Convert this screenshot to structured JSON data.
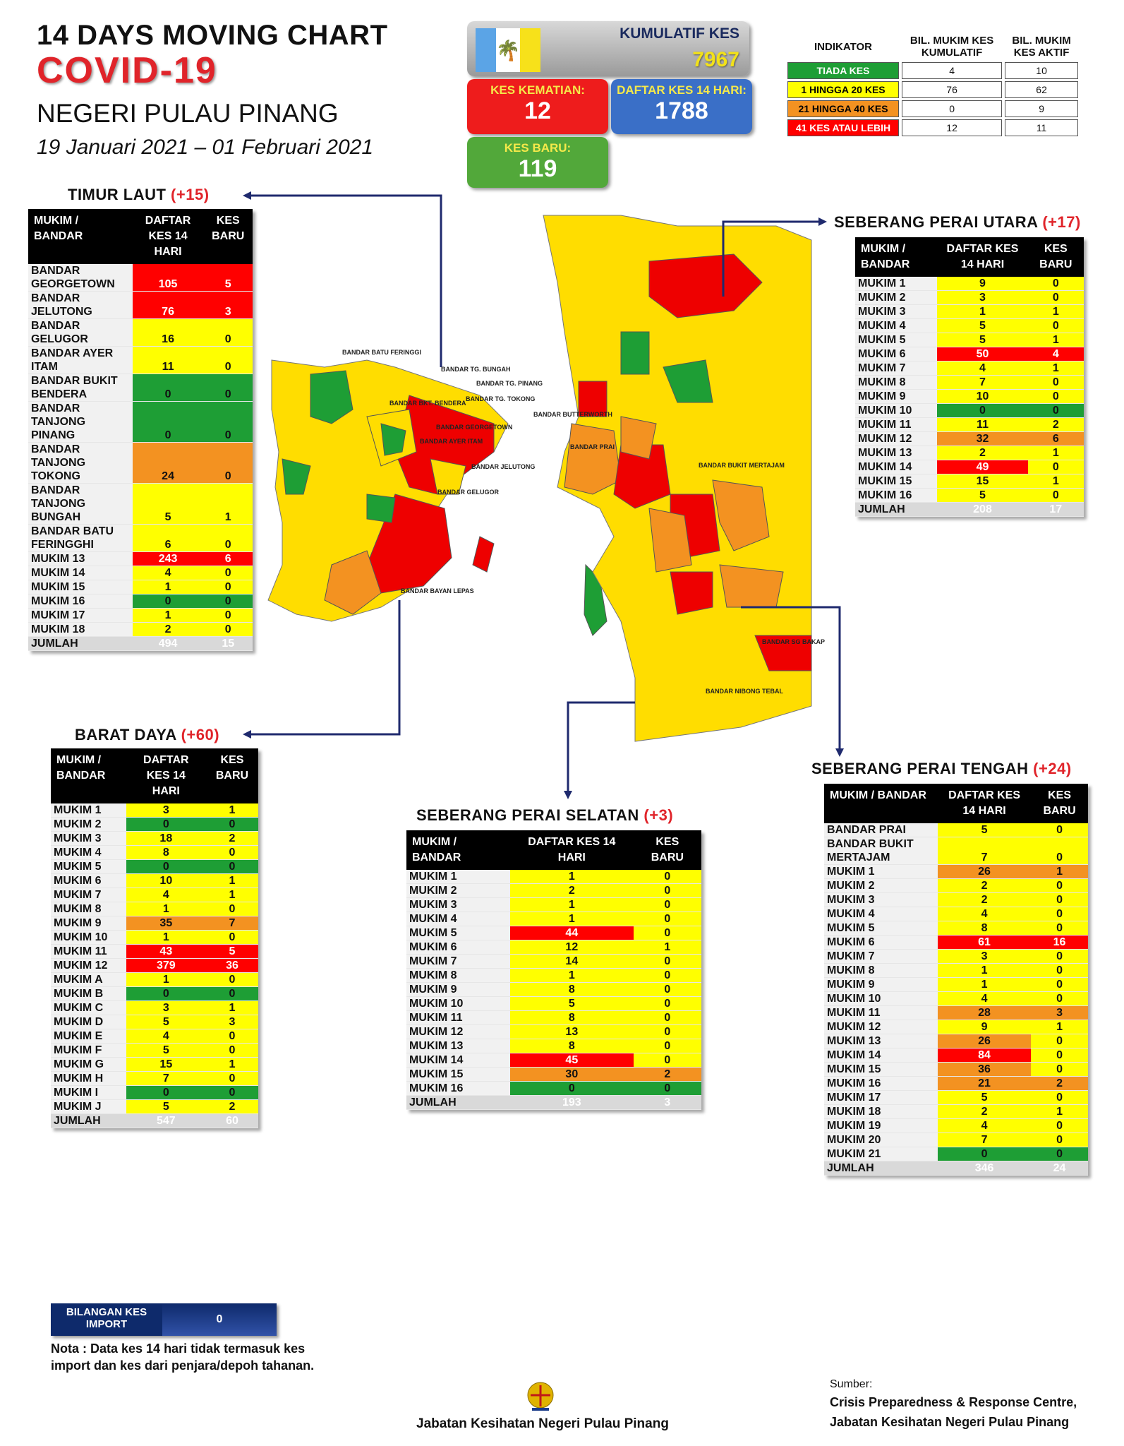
{
  "title": {
    "line1": "14  DAYS MOVING CHART",
    "line2": "COVID-19",
    "line3": "NEGERI PULAU PINANG",
    "dates": "19 Januari 2021 – 01 Februari 2021"
  },
  "summary": {
    "kumulatif_label": "KUMULATIF KES",
    "kumulatif_value": "7967",
    "kematian_label": "KES KEMATIAN:",
    "kematian_value": "12",
    "daftar_label": "DAFTAR KES 14 HARI:",
    "daftar_value": "1788",
    "baru_label": "KES BARU:",
    "baru_value": "119"
  },
  "indicator": {
    "headers": [
      "INDIKATOR",
      "BIL. MUKIM KES KUMULATIF",
      "BIL. MUKIM KES AKTIF"
    ],
    "rows": [
      {
        "label": "TIADA KES",
        "kumulatif": "4",
        "aktif": "10",
        "color": "#1e9e35"
      },
      {
        "label": "1 HINGGA 20 KES",
        "kumulatif": "76",
        "aktif": "62",
        "color": "#ffff00"
      },
      {
        "label": "21 HINGGA 40 KES",
        "kumulatif": "0",
        "aktif": "9",
        "color": "#f39221"
      },
      {
        "label": "41 KES ATAU LEBIH",
        "kumulatif": "12",
        "aktif": "11",
        "color": "#ff0000"
      }
    ]
  },
  "tables": {
    "timur_laut": {
      "name": "TIMUR LAUT",
      "plus": "(+15)",
      "headers": [
        "MUKIM / BANDAR",
        "DAFTAR KES 14 HARI",
        "KES BARU"
      ],
      "rows": [
        [
          "BANDAR GEORGETOWN",
          "105",
          "5",
          "R",
          "R"
        ],
        [
          "BANDAR JELUTONG",
          "76",
          "3",
          "R",
          "R"
        ],
        [
          "BANDAR GELUGOR",
          "16",
          "0",
          "Y",
          "Y"
        ],
        [
          "BANDAR AYER ITAM",
          "11",
          "0",
          "Y",
          "Y"
        ],
        [
          "BANDAR BUKIT BENDERA",
          "0",
          "0",
          "G",
          "G"
        ],
        [
          "BANDAR TANJONG PINANG",
          "0",
          "0",
          "G",
          "G"
        ],
        [
          "BANDAR TANJONG TOKONG",
          "24",
          "0",
          "O",
          "O"
        ],
        [
          "BANDAR TANJONG BUNGAH",
          "5",
          "1",
          "Y",
          "Y"
        ],
        [
          "BANDAR BATU FERINGGHI",
          "6",
          "0",
          "Y",
          "Y"
        ],
        [
          "MUKIM 13",
          "243",
          "6",
          "R",
          "R"
        ],
        [
          "MUKIM 14",
          "4",
          "0",
          "Y",
          "Y"
        ],
        [
          "MUKIM 15",
          "1",
          "0",
          "Y",
          "Y"
        ],
        [
          "MUKIM 16",
          "0",
          "0",
          "G",
          "G"
        ],
        [
          "MUKIM 17",
          "1",
          "0",
          "Y",
          "Y"
        ],
        [
          "MUKIM 18",
          "2",
          "0",
          "Y",
          "Y"
        ]
      ],
      "total": [
        "JUMLAH",
        "494",
        "15"
      ]
    },
    "barat_daya": {
      "name": "BARAT DAYA",
      "plus": "(+60)",
      "headers": [
        "MUKIM / BANDAR",
        "DAFTAR KES 14 HARI",
        "KES BARU"
      ],
      "rows": [
        [
          "MUKIM 1",
          "3",
          "1",
          "Y",
          "Y"
        ],
        [
          "MUKIM 2",
          "0",
          "0",
          "G",
          "G"
        ],
        [
          "MUKIM 3",
          "18",
          "2",
          "Y",
          "Y"
        ],
        [
          "MUKIM 4",
          "8",
          "0",
          "Y",
          "Y"
        ],
        [
          "MUKIM 5",
          "0",
          "0",
          "G",
          "G"
        ],
        [
          "MUKIM 6",
          "10",
          "1",
          "Y",
          "Y"
        ],
        [
          "MUKIM 7",
          "4",
          "1",
          "Y",
          "Y"
        ],
        [
          "MUKIM 8",
          "1",
          "0",
          "Y",
          "Y"
        ],
        [
          "MUKIM 9",
          "35",
          "7",
          "O",
          "O"
        ],
        [
          "MUKIM 10",
          "1",
          "0",
          "Y",
          "Y"
        ],
        [
          "MUKIM 11",
          "43",
          "5",
          "R",
          "R"
        ],
        [
          "MUKIM 12",
          "379",
          "36",
          "R",
          "R"
        ],
        [
          "MUKIM A",
          "1",
          "0",
          "Y",
          "Y"
        ],
        [
          "MUKIM B",
          "0",
          "0",
          "G",
          "G"
        ],
        [
          "MUKIM C",
          "3",
          "1",
          "Y",
          "Y"
        ],
        [
          "MUKIM D",
          "5",
          "3",
          "Y",
          "Y"
        ],
        [
          "MUKIM E",
          "4",
          "0",
          "Y",
          "Y"
        ],
        [
          "MUKIM F",
          "5",
          "0",
          "Y",
          "Y"
        ],
        [
          "MUKIM G",
          "15",
          "1",
          "Y",
          "Y"
        ],
        [
          "MUKIM H",
          "7",
          "0",
          "Y",
          "Y"
        ],
        [
          "MUKIM I",
          "0",
          "0",
          "G",
          "G"
        ],
        [
          "MUKIM J",
          "5",
          "2",
          "Y",
          "Y"
        ]
      ],
      "total": [
        "JUMLAH",
        "547",
        "60"
      ]
    },
    "spu": {
      "name": "SEBERANG PERAI UTARA",
      "plus": "(+17)",
      "headers": [
        "MUKIM / BANDAR",
        "DAFTAR KES 14 HARI",
        "KES BARU"
      ],
      "rows": [
        [
          "MUKIM 1",
          "9",
          "0",
          "Y",
          "Y"
        ],
        [
          "MUKIM 2",
          "3",
          "0",
          "Y",
          "Y"
        ],
        [
          "MUKIM 3",
          "1",
          "1",
          "Y",
          "Y"
        ],
        [
          "MUKIM 4",
          "5",
          "0",
          "Y",
          "Y"
        ],
        [
          "MUKIM 5",
          "5",
          "1",
          "Y",
          "Y"
        ],
        [
          "MUKIM 6",
          "50",
          "4",
          "R",
          "R"
        ],
        [
          "MUKIM 7",
          "4",
          "1",
          "Y",
          "Y"
        ],
        [
          "MUKIM 8",
          "7",
          "0",
          "Y",
          "Y"
        ],
        [
          "MUKIM 9",
          "10",
          "0",
          "Y",
          "Y"
        ],
        [
          "MUKIM 10",
          "0",
          "0",
          "G",
          "G"
        ],
        [
          "MUKIM 11",
          "11",
          "2",
          "Y",
          "Y"
        ],
        [
          "MUKIM 12",
          "32",
          "6",
          "O",
          "O"
        ],
        [
          "MUKIM 13",
          "2",
          "1",
          "Y",
          "Y"
        ],
        [
          "MUKIM 14",
          "49",
          "0",
          "R",
          "Y"
        ],
        [
          "MUKIM 15",
          "15",
          "1",
          "Y",
          "Y"
        ],
        [
          "MUKIM 16",
          "5",
          "0",
          "Y",
          "Y"
        ]
      ],
      "total": [
        "JUMLAH",
        "208",
        "17"
      ]
    },
    "sps": {
      "name": "SEBERANG PERAI SELATAN",
      "plus": "(+3)",
      "headers": [
        "MUKIM / BANDAR",
        "DAFTAR KES 14 HARI",
        "KES BARU"
      ],
      "rows": [
        [
          "MUKIM 1",
          "1",
          "0",
          "Y",
          "Y"
        ],
        [
          "MUKIM 2",
          "2",
          "0",
          "Y",
          "Y"
        ],
        [
          "MUKIM 3",
          "1",
          "0",
          "Y",
          "Y"
        ],
        [
          "MUKIM 4",
          "1",
          "0",
          "Y",
          "Y"
        ],
        [
          "MUKIM 5",
          "44",
          "0",
          "R",
          "Y"
        ],
        [
          "MUKIM 6",
          "12",
          "1",
          "Y",
          "Y"
        ],
        [
          "MUKIM 7",
          "14",
          "0",
          "Y",
          "Y"
        ],
        [
          "MUKIM 8",
          "1",
          "0",
          "Y",
          "Y"
        ],
        [
          "MUKIM 9",
          "8",
          "0",
          "Y",
          "Y"
        ],
        [
          "MUKIM 10",
          "5",
          "0",
          "Y",
          "Y"
        ],
        [
          "MUKIM 11",
          "8",
          "0",
          "Y",
          "Y"
        ],
        [
          "MUKIM 12",
          "13",
          "0",
          "Y",
          "Y"
        ],
        [
          "MUKIM 13",
          "8",
          "0",
          "Y",
          "Y"
        ],
        [
          "MUKIM 14",
          "45",
          "0",
          "R",
          "Y"
        ],
        [
          "MUKIM 15",
          "30",
          "2",
          "O",
          "O"
        ],
        [
          "MUKIM 16",
          "0",
          "0",
          "G",
          "G"
        ]
      ],
      "total": [
        "JUMLAH",
        "193",
        "3"
      ]
    },
    "spt": {
      "name": "SEBERANG PERAI TENGAH",
      "plus": "(+24)",
      "headers": [
        "MUKIM / BANDAR",
        "DAFTAR KES 14 HARI",
        "KES BARU"
      ],
      "rows": [
        [
          "BANDAR PRAI",
          "5",
          "0",
          "Y",
          "Y"
        ],
        [
          "BANDAR BUKIT MERTAJAM",
          "7",
          "0",
          "Y",
          "Y"
        ],
        [
          "MUKIM 1",
          "26",
          "1",
          "O",
          "O"
        ],
        [
          "MUKIM 2",
          "2",
          "0",
          "Y",
          "Y"
        ],
        [
          "MUKIM 3",
          "2",
          "0",
          "Y",
          "Y"
        ],
        [
          "MUKIM 4",
          "4",
          "0",
          "Y",
          "Y"
        ],
        [
          "MUKIM 5",
          "8",
          "0",
          "Y",
          "Y"
        ],
        [
          "MUKIM 6",
          "61",
          "16",
          "R",
          "R"
        ],
        [
          "MUKIM 7",
          "3",
          "0",
          "Y",
          "Y"
        ],
        [
          "MUKIM 8",
          "1",
          "0",
          "Y",
          "Y"
        ],
        [
          "MUKIM 9",
          "1",
          "0",
          "Y",
          "Y"
        ],
        [
          "MUKIM 10",
          "4",
          "0",
          "Y",
          "Y"
        ],
        [
          "MUKIM 11",
          "28",
          "3",
          "O",
          "O"
        ],
        [
          "MUKIM 12",
          "9",
          "1",
          "Y",
          "Y"
        ],
        [
          "MUKIM 13",
          "26",
          "0",
          "O",
          "Y"
        ],
        [
          "MUKIM 14",
          "84",
          "0",
          "R",
          "Y"
        ],
        [
          "MUKIM 15",
          "36",
          "0",
          "O",
          "Y"
        ],
        [
          "MUKIM 16",
          "21",
          "2",
          "O",
          "O"
        ],
        [
          "MUKIM 17",
          "5",
          "0",
          "Y",
          "Y"
        ],
        [
          "MUKIM 18",
          "2",
          "1",
          "Y",
          "Y"
        ],
        [
          "MUKIM 19",
          "4",
          "0",
          "Y",
          "Y"
        ],
        [
          "MUKIM 20",
          "7",
          "0",
          "Y",
          "Y"
        ],
        [
          "MUKIM 21",
          "0",
          "0",
          "G",
          "G"
        ]
      ],
      "total": [
        "JUMLAH",
        "346",
        "24"
      ]
    }
  },
  "import": {
    "label": "BILANGAN KES IMPORT",
    "value": "0"
  },
  "nota": "Nota : Data kes 14 hari tidak termasuk kes import dan kes dari penjara/depoh tahanan.",
  "footer": {
    "dept": "Jabatan Kesihatan Negeri Pulau Pinang",
    "sumber_label": "Sumber:",
    "sumber_1": "Crisis Preparedness & Response Centre,",
    "sumber_2": "Jabatan Kesihatan Negeri Pulau Pinang"
  },
  "map_labels": {
    "island": [
      "BANDAR BATU FERINGGI",
      "BANDAR TG. BUNGAH",
      "BANDAR TG. PINANG",
      "BANDAR TG. TOKONG",
      "BANDAR BKT. BENDERA",
      "BANDAR GEORGETOWN",
      "BANDAR AYER ITAM",
      "BANDAR JELUTONG",
      "BANDAR GELUGOR",
      "BANDAR BAYAN LEPAS"
    ],
    "mainland": [
      "BANDAR BUTTERWORTH",
      "BANDAR PRAI",
      "BANDAR BUKIT MERTAJAM",
      "BANDAR SG BAKAP",
      "BANDAR NIBONG TEBAL"
    ]
  }
}
